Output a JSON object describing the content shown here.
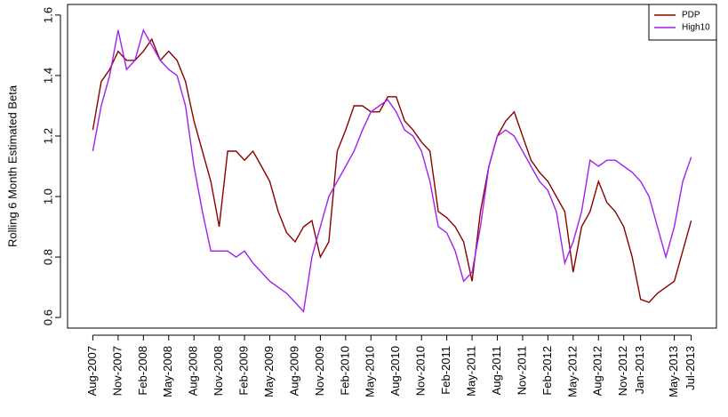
{
  "chart_data": {
    "type": "line",
    "ylabel": "Rolling 6 Month Estimated Beta",
    "x": [
      "2007-08",
      "2007-09",
      "2007-10",
      "2007-11",
      "2007-12",
      "2008-01",
      "2008-02",
      "2008-03",
      "2008-04",
      "2008-05",
      "2008-06",
      "2008-07",
      "2008-08",
      "2008-09",
      "2008-10",
      "2008-11",
      "2008-12",
      "2009-01",
      "2009-02",
      "2009-03",
      "2009-04",
      "2009-05",
      "2009-06",
      "2009-07",
      "2009-08",
      "2009-09",
      "2009-10",
      "2009-11",
      "2009-12",
      "2010-01",
      "2010-02",
      "2010-03",
      "2010-04",
      "2010-05",
      "2010-06",
      "2010-07",
      "2010-08",
      "2010-09",
      "2010-10",
      "2010-11",
      "2010-12",
      "2011-01",
      "2011-02",
      "2011-03",
      "2011-04",
      "2011-05",
      "2011-06",
      "2011-07",
      "2011-08",
      "2011-09",
      "2011-10",
      "2011-11",
      "2011-12",
      "2012-01",
      "2012-02",
      "2012-03",
      "2012-04",
      "2012-05",
      "2012-06",
      "2012-07",
      "2012-08",
      "2012-09",
      "2012-10",
      "2012-11",
      "2012-12",
      "2013-01",
      "2013-02",
      "2013-03",
      "2013-04",
      "2013-05",
      "2013-06",
      "2013-07"
    ],
    "series": [
      {
        "name": "PDP",
        "color": "#8b0000",
        "values": [
          1.22,
          1.38,
          1.42,
          1.48,
          1.45,
          1.45,
          1.48,
          1.52,
          1.45,
          1.48,
          1.45,
          1.38,
          1.25,
          1.15,
          1.05,
          0.9,
          1.15,
          1.15,
          1.12,
          1.15,
          1.1,
          1.05,
          0.95,
          0.88,
          0.85,
          0.9,
          0.92,
          0.8,
          0.85,
          1.15,
          1.22,
          1.3,
          1.3,
          1.28,
          1.28,
          1.33,
          1.33,
          1.25,
          1.22,
          1.18,
          1.15,
          0.95,
          0.93,
          0.9,
          0.85,
          0.72,
          0.95,
          1.1,
          1.2,
          1.25,
          1.28,
          1.2,
          1.12,
          1.08,
          1.05,
          1.0,
          0.95,
          0.75,
          0.9,
          0.95,
          1.05,
          0.98,
          0.95,
          0.9,
          0.8,
          0.66,
          0.65,
          0.68,
          0.7,
          0.72,
          0.82,
          0.92
        ]
      },
      {
        "name": "High10",
        "color": "#a020f0",
        "values": [
          1.15,
          1.3,
          1.4,
          1.55,
          1.42,
          1.45,
          1.55,
          1.5,
          1.45,
          1.42,
          1.4,
          1.3,
          1.1,
          0.95,
          0.82,
          0.82,
          0.82,
          0.8,
          0.82,
          0.78,
          0.75,
          0.72,
          0.7,
          0.68,
          0.65,
          0.62,
          0.8,
          0.9,
          1.0,
          1.05,
          1.1,
          1.15,
          1.22,
          1.28,
          1.3,
          1.32,
          1.28,
          1.22,
          1.2,
          1.15,
          1.05,
          0.9,
          0.88,
          0.82,
          0.72,
          0.75,
          0.9,
          1.1,
          1.2,
          1.22,
          1.2,
          1.15,
          1.1,
          1.05,
          1.02,
          0.95,
          0.78,
          0.85,
          0.95,
          1.12,
          1.1,
          1.12,
          1.12,
          1.1,
          1.08,
          1.05,
          1.0,
          0.9,
          0.8,
          0.9,
          1.05,
          1.13
        ]
      }
    ],
    "xlim": [
      "2007-05",
      "2013-10"
    ],
    "xticks": [
      {
        "value": "2007-08",
        "label": "Aug-2007"
      },
      {
        "value": "2007-11",
        "label": "Nov-2007"
      },
      {
        "value": "2008-02",
        "label": "Feb-2008"
      },
      {
        "value": "2008-05",
        "label": "May-2008"
      },
      {
        "value": "2008-08",
        "label": "Aug-2008"
      },
      {
        "value": "2008-11",
        "label": "Nov-2008"
      },
      {
        "value": "2009-02",
        "label": "Feb-2009"
      },
      {
        "value": "2009-05",
        "label": "May-2009"
      },
      {
        "value": "2009-08",
        "label": "Aug-2009"
      },
      {
        "value": "2009-11",
        "label": "Nov-2009"
      },
      {
        "value": "2010-02",
        "label": "Feb-2010"
      },
      {
        "value": "2010-05",
        "label": "May-2010"
      },
      {
        "value": "2010-08",
        "label": "Aug-2010"
      },
      {
        "value": "2010-11",
        "label": "Nov-2010"
      },
      {
        "value": "2011-02",
        "label": "Feb-2011"
      },
      {
        "value": "2011-05",
        "label": "May-2011"
      },
      {
        "value": "2011-08",
        "label": "Aug-2011"
      },
      {
        "value": "2011-11",
        "label": "Nov-2011"
      },
      {
        "value": "2012-02",
        "label": "Feb-2012"
      },
      {
        "value": "2012-05",
        "label": "May-2012"
      },
      {
        "value": "2012-08",
        "label": "Aug-2012"
      },
      {
        "value": "2012-11",
        "label": "Nov-2012"
      },
      {
        "value": "2013-01",
        "label": "Jan-2013"
      },
      {
        "value": "2013-05",
        "label": "May-2013"
      },
      {
        "value": "2013-07",
        "label": "Jul-2013"
      }
    ],
    "ylim": [
      0.565,
      1.635
    ],
    "yticks": [
      0.6,
      0.8,
      {
        "value": 1,
        "label": "1.0"
      },
      1.2,
      1.4,
      1.6
    ],
    "legend": "top-right"
  }
}
